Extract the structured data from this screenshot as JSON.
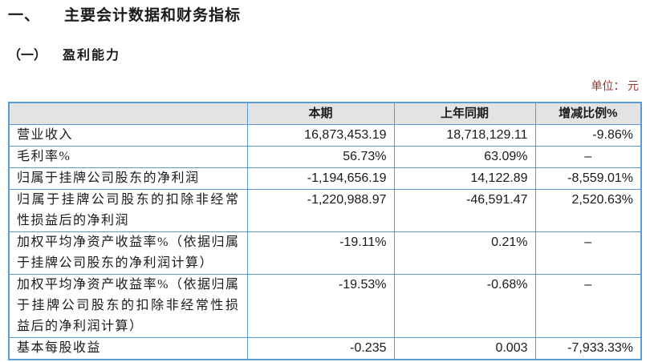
{
  "page": {
    "section_number": "一、",
    "section_title": "主要会计数据和财务指标",
    "subsection_number": "（一）",
    "subsection_title": "盈利能力",
    "unit_label": "单位： 元"
  },
  "colors": {
    "table_border": "#5B9BD5",
    "header_bg": "#E3E3E3",
    "unit_text": "#953735"
  },
  "table": {
    "headers": [
      "",
      "本期",
      "上年同期",
      "增减比例%"
    ],
    "rows": [
      {
        "label": "营业收入",
        "current": "16,873,453.19",
        "prior": "18,718,129.11",
        "change": "-9.86%"
      },
      {
        "label": "毛利率%",
        "current": "56.73%",
        "prior": "63.09%",
        "change": "–"
      },
      {
        "label": "归属于挂牌公司股东的净利润",
        "current": "-1,194,656.19",
        "prior": "14,122.89",
        "change": "-8,559.01%"
      },
      {
        "label": "归属于挂牌公司股东的扣除非经常性损益后的净利润",
        "current": "-1,220,988.97",
        "prior": "-46,591.47",
        "change": "2,520.63%"
      },
      {
        "label": "加权平均净资产收益率%（依据归属于挂牌公司股东的净利润计算）",
        "current": "-19.11%",
        "prior": "0.21%",
        "change": "–"
      },
      {
        "label": "加权平均净资产收益率%（依据归属于挂牌公司股东的扣除非经常性损益后的净利润计算）",
        "current": "-19.53%",
        "prior": "-0.68%",
        "change": "–"
      },
      {
        "label": "基本每股收益",
        "current": "-0.235",
        "prior": "0.003",
        "change": "-7,933.33%"
      }
    ]
  }
}
